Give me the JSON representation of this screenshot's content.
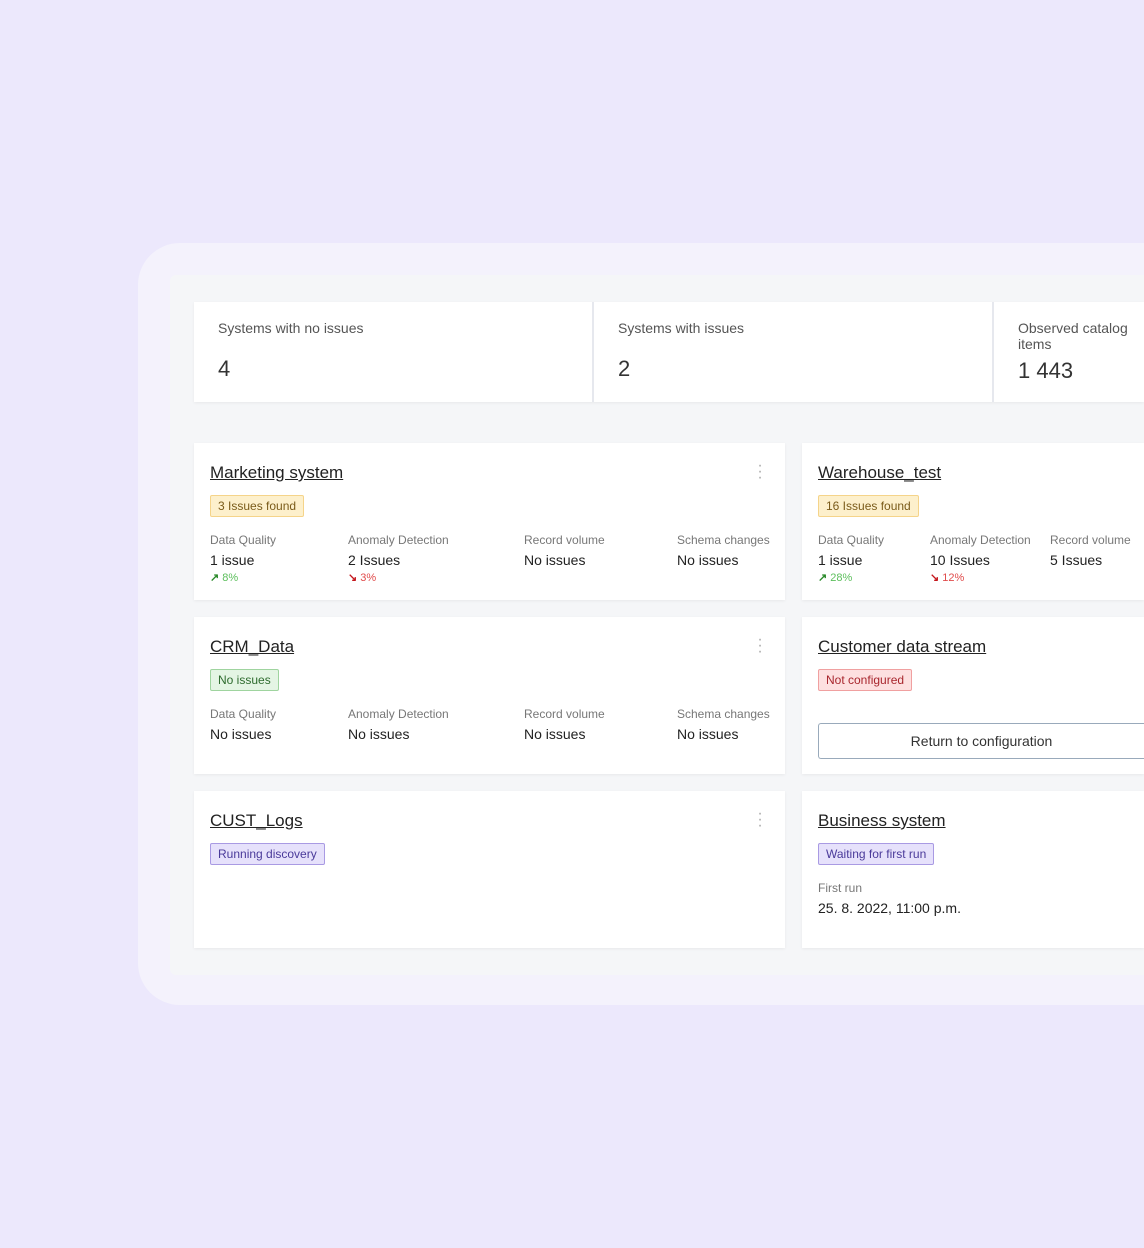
{
  "stats": [
    {
      "label": "Systems with no issues",
      "value": "4"
    },
    {
      "label": "Systems with issues",
      "value": "2"
    },
    {
      "label": "Observed catalog items",
      "value": "1 443"
    }
  ],
  "colors": {
    "background": "#ece8fc",
    "trend_up": "#2a8a2a",
    "trend_down": "#c4161c"
  },
  "cards": {
    "marketing": {
      "title": "Marketing system",
      "badge": "3 Issues found",
      "metrics": [
        {
          "label": "Data Quality",
          "value": "1 issue",
          "trend": "8%",
          "dir": "up"
        },
        {
          "label": "Anomaly Detection",
          "value": "2 Issues",
          "trend": "3%",
          "dir": "down"
        },
        {
          "label": "Record volume",
          "value": "No issues"
        },
        {
          "label": "Schema changes",
          "value": "No issues"
        }
      ]
    },
    "warehouse": {
      "title": "Warehouse_test",
      "badge": "16 Issues found",
      "metrics": [
        {
          "label": "Data Quality",
          "value": "1 issue",
          "trend": "28%",
          "dir": "up"
        },
        {
          "label": "Anomaly Detection",
          "value": "10 Issues",
          "trend": "12%",
          "dir": "down"
        },
        {
          "label": "Record volume",
          "value": "5 Issues"
        }
      ]
    },
    "crm": {
      "title": "CRM_Data",
      "badge": "No issues",
      "metrics": [
        {
          "label": "Data Quality",
          "value": "No issues"
        },
        {
          "label": "Anomaly Detection",
          "value": "No issues"
        },
        {
          "label": "Record volume",
          "value": "No issues"
        },
        {
          "label": "Schema changes",
          "value": "No issues"
        }
      ]
    },
    "customer": {
      "title": "Customer data stream",
      "badge": "Not configured",
      "button": "Return to configuration"
    },
    "cust_logs": {
      "title": "CUST_Logs",
      "badge": "Running discovery"
    },
    "business": {
      "title": "Business system",
      "badge": "Waiting for first run",
      "first_run_label": "First run",
      "first_run_value": "25. 8. 2022, 11:00 p.m."
    }
  },
  "icons": {
    "trend_up": "↗",
    "trend_down": "↘",
    "menu": "⋮"
  }
}
